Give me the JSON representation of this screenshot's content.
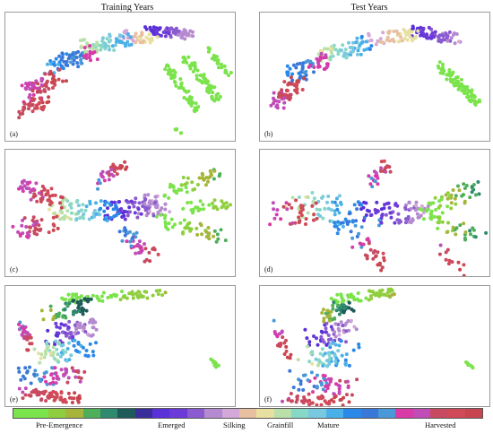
{
  "column_titles": [
    "Training Years",
    "Test Years"
  ],
  "panel_labels": [
    "(a)",
    "(b)",
    "(c)",
    "(d)",
    "(e)",
    "(f)"
  ],
  "legend": {
    "labels": [
      "Pre-Emergence",
      "Emerged",
      "Silking",
      "Grainfill",
      "Mature",
      "Harvested"
    ],
    "colors": [
      "#7be34b",
      "#7be34b",
      "#8fcf3f",
      "#a6b53a",
      "#4fae5a",
      "#2f8a6e",
      "#1f5a5a",
      "#3a2e9a",
      "#5a30d8",
      "#6b3ad8",
      "#8a5ad0",
      "#b48ad0",
      "#d4a8d8",
      "#e8c0a0",
      "#e8e0a0",
      "#b8e0a8",
      "#88d8c8",
      "#78c8e0",
      "#4ab0e8",
      "#2a88e8",
      "#3a78d8",
      "#4a98d8",
      "#d83aa8",
      "#c04cb8",
      "#c84a60",
      "#d04a58",
      "#c8444e"
    ]
  },
  "chart_data": [
    {
      "type": "scatter",
      "panel": "(a)",
      "column": "Training Years",
      "title": "",
      "xlabel": "",
      "ylabel": "",
      "grid": false
    },
    {
      "type": "scatter",
      "panel": "(b)",
      "column": "Test Years",
      "title": "",
      "xlabel": "",
      "ylabel": "",
      "grid": false
    },
    {
      "type": "scatter",
      "panel": "(c)",
      "column": "Training Years",
      "title": "",
      "xlabel": "",
      "ylabel": "",
      "grid": false
    },
    {
      "type": "scatter",
      "panel": "(d)",
      "column": "Test Years",
      "title": "",
      "xlabel": "",
      "ylabel": "",
      "grid": false
    },
    {
      "type": "scatter",
      "panel": "(e)",
      "column": "Training Years",
      "title": "",
      "xlabel": "",
      "ylabel": "",
      "grid": false
    },
    {
      "type": "scatter",
      "panel": "(f)",
      "column": "Test Years",
      "title": "",
      "xlabel": "",
      "ylabel": "",
      "grid": false
    }
  ]
}
